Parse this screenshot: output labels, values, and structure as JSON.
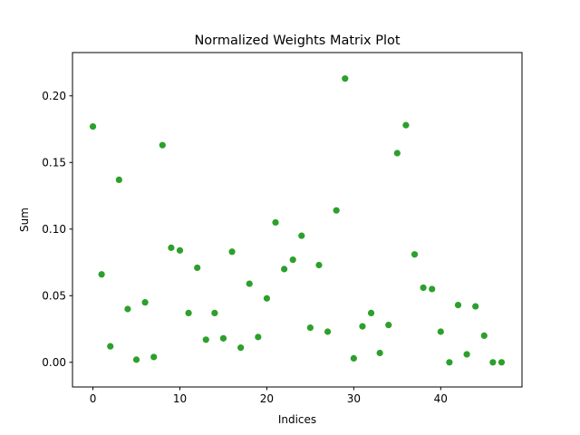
{
  "chart_data": {
    "type": "scatter",
    "title": "Normalized Weights Matrix Plot",
    "xlabel": "Indices",
    "ylabel": "Sum",
    "xlim": [
      -2.35,
      49.35
    ],
    "ylim": [
      -0.0185,
      0.2325
    ],
    "x_ticks": [
      0,
      10,
      20,
      30,
      40
    ],
    "y_ticks": [
      0.0,
      0.05,
      0.1,
      0.15,
      0.2
    ],
    "x_tick_labels": [
      "0",
      "10",
      "20",
      "30",
      "40"
    ],
    "y_tick_labels": [
      "0.00",
      "0.05",
      "0.10",
      "0.15",
      "0.20"
    ],
    "grid": false,
    "marker_color": "#2ca02c",
    "series": [
      {
        "x": [
          0,
          1,
          2,
          3,
          4,
          5,
          6,
          7,
          8,
          9,
          10,
          11,
          12,
          13,
          14,
          15,
          16,
          17,
          18,
          19,
          20,
          21,
          22,
          23,
          24,
          25,
          26,
          27,
          28,
          29,
          30,
          31,
          32,
          33,
          34,
          35,
          36,
          37,
          38,
          39,
          40,
          41,
          42,
          43,
          44,
          45,
          46,
          47
        ],
        "values": [
          0.177,
          0.066,
          0.012,
          0.137,
          0.04,
          0.002,
          0.045,
          0.004,
          0.163,
          0.086,
          0.084,
          0.037,
          0.071,
          0.017,
          0.037,
          0.018,
          0.083,
          0.011,
          0.059,
          0.019,
          0.048,
          0.105,
          0.07,
          0.077,
          0.095,
          0.026,
          0.073,
          0.023,
          0.114,
          0.213,
          0.003,
          0.027,
          0.037,
          0.007,
          0.028,
          0.157,
          0.178,
          0.081,
          0.056,
          0.055,
          0.023,
          0.0,
          0.043,
          0.006,
          0.042,
          0.02,
          0.0,
          0.0
        ]
      }
    ]
  }
}
